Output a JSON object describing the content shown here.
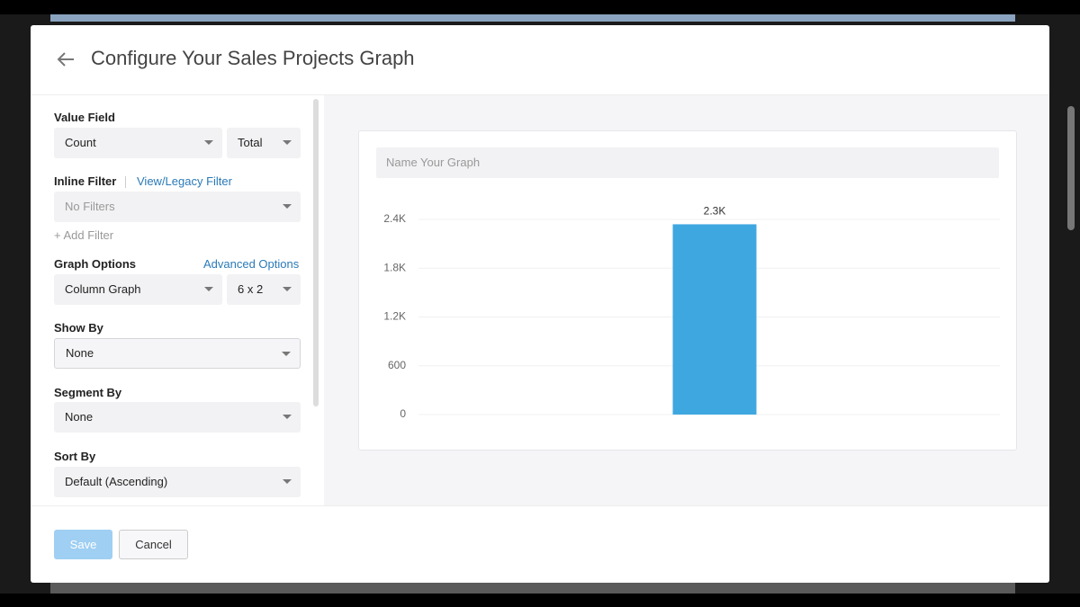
{
  "header": {
    "title": "Configure Your Sales Projects Graph"
  },
  "form": {
    "value_field": {
      "label": "Value Field",
      "field": "Count",
      "aggregate": "Total"
    },
    "inline_filter": {
      "label": "Inline Filter",
      "link": "View/Legacy Filter",
      "placeholder": "No Filters",
      "add": "+ Add Filter"
    },
    "graph_options": {
      "label": "Graph Options",
      "link": "Advanced Options",
      "graph_type": "Column Graph",
      "size": "6 x 2"
    },
    "show_by": {
      "label": "Show By",
      "value": "None"
    },
    "segment_by": {
      "label": "Segment By",
      "value": "None"
    },
    "sort_by": {
      "label": "Sort By",
      "value": "Default (Ascending)"
    }
  },
  "graph_name_placeholder": "Name Your Graph",
  "footer": {
    "save": "Save",
    "cancel": "Cancel"
  },
  "chart_data": {
    "type": "bar",
    "categories": [
      null
    ],
    "values": [
      2340
    ],
    "value_labels": [
      "2.3K"
    ],
    "color": "#3fa7e0",
    "ylim": [
      0,
      2400
    ],
    "yticks": [
      0,
      600,
      {
        "value": 1200,
        "label": "1.2K"
      },
      {
        "value": 1800,
        "label": "1.8K"
      },
      {
        "value": 2400,
        "label": "2.4K"
      }
    ],
    "grid": true
  }
}
